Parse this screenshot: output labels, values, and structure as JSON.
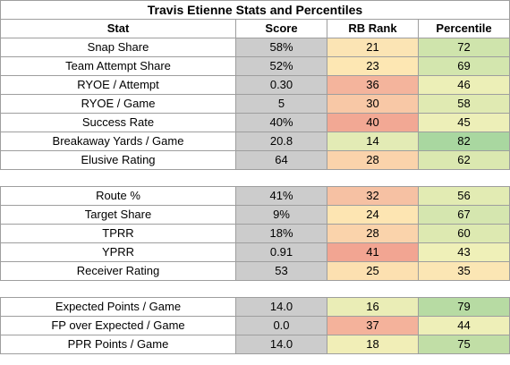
{
  "title": "Travis Etienne Stats and Percentiles",
  "headers": {
    "stat": "Stat",
    "score": "Score",
    "rank": "RB Rank",
    "pct": "Percentile"
  },
  "sections": [
    [
      {
        "stat": "Snap Share",
        "score": "58%",
        "rank": "21",
        "pct": "72",
        "rank_color": "#fbe4b4",
        "pct_color": "#cfe4ac"
      },
      {
        "stat": "Team Attempt Share",
        "score": "52%",
        "rank": "23",
        "pct": "69",
        "rank_color": "#fde7b3",
        "pct_color": "#d3e6ae"
      },
      {
        "stat": "RYOE / Attempt",
        "score": "0.30",
        "rank": "36",
        "pct": "46",
        "rank_color": "#f4b49c",
        "pct_color": "#ecefb7"
      },
      {
        "stat": "RYOE / Game",
        "score": "5",
        "rank": "30",
        "pct": "58",
        "rank_color": "#f8c8a6",
        "pct_color": "#e0eab2"
      },
      {
        "stat": "Success Rate",
        "score": "40%",
        "rank": "40",
        "pct": "45",
        "rank_color": "#f2a894",
        "pct_color": "#edefb8"
      },
      {
        "stat": "Breakaway Yards / Game",
        "score": "20.8",
        "rank": "14",
        "pct": "82",
        "rank_color": "#e3ebb5",
        "pct_color": "#a9d7a0"
      },
      {
        "stat": "Elusive Rating",
        "score": "64",
        "rank": "28",
        "pct": "62",
        "rank_color": "#fad3ab",
        "pct_color": "#dbe8b0"
      }
    ],
    [
      {
        "stat": "Route %",
        "score": "41%",
        "rank": "32",
        "pct": "56",
        "rank_color": "#f6c1a3",
        "pct_color": "#e2ebb3"
      },
      {
        "stat": "Target Share",
        "score": "9%",
        "rank": "24",
        "pct": "67",
        "rank_color": "#fde5b2",
        "pct_color": "#d5e6af"
      },
      {
        "stat": "TPRR",
        "score": "18%",
        "rank": "28",
        "pct": "60",
        "rank_color": "#fad3ab",
        "pct_color": "#dde9b1"
      },
      {
        "stat": "YPRR",
        "score": "0.91",
        "rank": "41",
        "pct": "43",
        "rank_color": "#f2a592",
        "pct_color": "#eff0b8"
      },
      {
        "stat": "Receiver Rating",
        "score": "53",
        "rank": "25",
        "pct": "35",
        "rank_color": "#fce0b0",
        "pct_color": "#fbe6b4"
      }
    ],
    [
      {
        "stat": "Expected Points / Game",
        "score": "14.0",
        "rank": "16",
        "pct": "79",
        "rank_color": "#eaedb6",
        "pct_color": "#b7dba3"
      },
      {
        "stat": "FP over Expected / Game",
        "score": "0.0",
        "rank": "37",
        "pct": "44",
        "rank_color": "#f4b29b",
        "pct_color": "#eeefb8"
      },
      {
        "stat": "PPR Points / Game",
        "score": "14.0",
        "rank": "18",
        "pct": "75",
        "rank_color": "#f1eeb7",
        "pct_color": "#c1dea6"
      }
    ]
  ]
}
